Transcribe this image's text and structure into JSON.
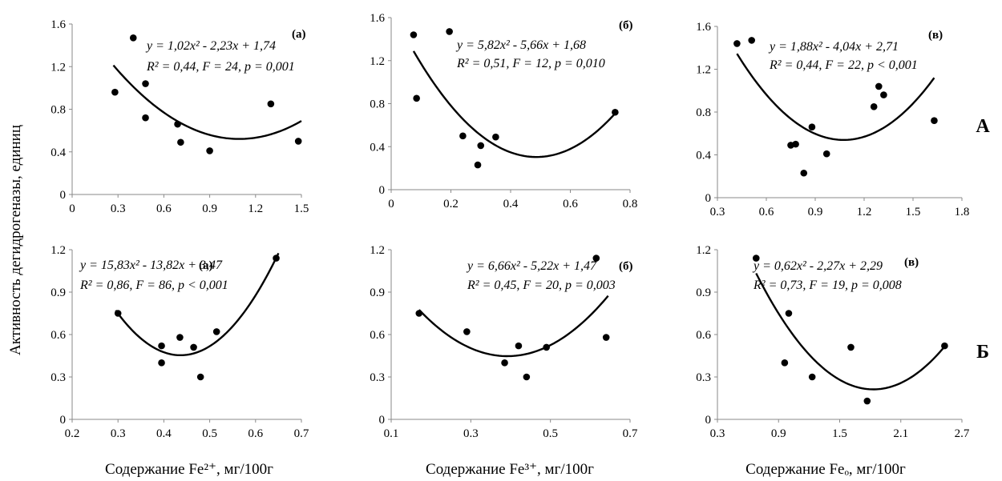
{
  "figure": {
    "ylabel": "Активность дегидрогеназы, единиц",
    "xlabels": [
      "Содержание Fe²⁺, мг/100г",
      "Содержание Fe³⁺, мг/100г",
      "Содержание Feₒ, мг/100г"
    ],
    "row_labels": [
      "А",
      "Б"
    ]
  },
  "chart_data": [
    {
      "type": "scatter",
      "row": "А",
      "tag": "(а)",
      "xlim": [
        0,
        1.5
      ],
      "xticks": [
        0,
        0.3,
        0.6,
        0.9,
        1.2,
        1.5
      ],
      "ylim": [
        0,
        1.6
      ],
      "yticks": [
        0,
        0.4,
        0.8,
        1.2,
        1.6
      ],
      "points": [
        [
          0.28,
          0.96
        ],
        [
          0.4,
          1.47
        ],
        [
          0.48,
          1.04
        ],
        [
          0.48,
          0.72
        ],
        [
          0.69,
          0.66
        ],
        [
          0.71,
          0.49
        ],
        [
          0.9,
          0.41
        ],
        [
          1.3,
          0.85
        ],
        [
          1.48,
          0.5
        ]
      ],
      "fit": {
        "type": "quadratic",
        "a": 1.02,
        "b": -2.23,
        "c": 1.74,
        "range": [
          0.27,
          1.5
        ]
      },
      "equation": [
        "y = 1,02x² - 2,23x + 1,74",
        "R² = 0,44, F = 24, p = 0,001"
      ]
    },
    {
      "type": "scatter",
      "row": "А",
      "tag": "(б)",
      "xlim": [
        0,
        0.8
      ],
      "xticks": [
        0,
        0.2,
        0.4,
        0.6,
        0.8
      ],
      "ylim": [
        0,
        1.6
      ],
      "yticks": [
        0,
        0.4,
        0.8,
        1.2,
        1.6
      ],
      "points": [
        [
          0.075,
          1.44
        ],
        [
          0.085,
          0.85
        ],
        [
          0.195,
          1.47
        ],
        [
          0.24,
          0.5
        ],
        [
          0.29,
          0.23
        ],
        [
          0.3,
          0.41
        ],
        [
          0.35,
          0.49
        ],
        [
          0.75,
          0.72
        ]
      ],
      "fit": {
        "type": "quadratic",
        "a": 5.82,
        "b": -5.66,
        "c": 1.68,
        "range": [
          0.075,
          0.75
        ]
      },
      "equation": [
        "y = 5,82x² - 5,66x + 1,68",
        "R² = 0,51, F = 12, p = 0,010"
      ]
    },
    {
      "type": "scatter",
      "row": "А",
      "tag": "(в)",
      "xlim": [
        0.3,
        1.8
      ],
      "xticks": [
        0.3,
        0.6,
        0.9,
        1.2,
        1.5,
        1.8
      ],
      "ylim": [
        0,
        1.6
      ],
      "yticks": [
        0,
        0.4,
        0.8,
        1.2,
        1.6
      ],
      "points": [
        [
          0.42,
          1.44
        ],
        [
          0.51,
          1.47
        ],
        [
          0.75,
          0.49
        ],
        [
          0.78,
          0.5
        ],
        [
          0.83,
          0.23
        ],
        [
          0.88,
          0.66
        ],
        [
          0.97,
          0.41
        ],
        [
          1.26,
          0.85
        ],
        [
          1.29,
          1.04
        ],
        [
          1.32,
          0.96
        ],
        [
          1.63,
          0.72
        ]
      ],
      "fit": {
        "type": "quadratic",
        "a": 1.88,
        "b": -4.04,
        "c": 2.71,
        "range": [
          0.42,
          1.63
        ]
      },
      "equation": [
        "y = 1,88x² - 4,04x + 2,71",
        "R² = 0,44, F = 22, p < 0,001"
      ]
    },
    {
      "type": "scatter",
      "row": "Б",
      "tag": "(а)",
      "xlim": [
        0.2,
        0.7
      ],
      "xticks": [
        0.2,
        0.3,
        0.4,
        0.5,
        0.6,
        0.7
      ],
      "ylim": [
        0,
        1.2
      ],
      "yticks": [
        0,
        0.3,
        0.6,
        0.9,
        1.2
      ],
      "points": [
        [
          0.3,
          0.75
        ],
        [
          0.395,
          0.52
        ],
        [
          0.395,
          0.4
        ],
        [
          0.435,
          0.58
        ],
        [
          0.465,
          0.51
        ],
        [
          0.48,
          0.3
        ],
        [
          0.515,
          0.62
        ],
        [
          0.645,
          1.14
        ]
      ],
      "fit": {
        "type": "quadratic",
        "a": 15.83,
        "b": -13.82,
        "c": 3.47,
        "range": [
          0.295,
          0.65
        ]
      },
      "equation": [
        "y = 15,83x² - 13,82x + 3,47",
        "R² = 0,86, F = 86, p < 0,001"
      ]
    },
    {
      "type": "scatter",
      "row": "Б",
      "tag": "(б)",
      "xlim": [
        0.1,
        0.7
      ],
      "xticks": [
        0.1,
        0.3,
        0.5,
        0.7
      ],
      "ylim": [
        0,
        1.2
      ],
      "yticks": [
        0,
        0.3,
        0.6,
        0.9,
        1.2
      ],
      "points": [
        [
          0.17,
          0.75
        ],
        [
          0.29,
          0.62
        ],
        [
          0.385,
          0.4
        ],
        [
          0.42,
          0.52
        ],
        [
          0.44,
          0.3
        ],
        [
          0.49,
          0.51
        ],
        [
          0.615,
          1.14
        ],
        [
          0.64,
          0.58
        ]
      ],
      "fit": {
        "type": "quadratic",
        "a": 6.66,
        "b": -5.22,
        "c": 1.47,
        "range": [
          0.17,
          0.645
        ]
      },
      "equation": [
        "y = 6,66x² - 5,22x + 1,47",
        "R² = 0,45, F = 20, p = 0,003"
      ]
    },
    {
      "type": "scatter",
      "row": "Б",
      "tag": "(в)",
      "xlim": [
        0.3,
        2.7
      ],
      "xticks": [
        0.3,
        0.9,
        1.5,
        2.1,
        2.7
      ],
      "ylim": [
        0,
        1.2
      ],
      "yticks": [
        0,
        0.3,
        0.6,
        0.9,
        1.2
      ],
      "points": [
        [
          0.68,
          1.14
        ],
        [
          0.96,
          0.4
        ],
        [
          1.0,
          0.75
        ],
        [
          1.23,
          0.3
        ],
        [
          1.61,
          0.51
        ],
        [
          1.77,
          0.13
        ],
        [
          2.53,
          0.52
        ]
      ],
      "fit": {
        "type": "quadratic",
        "a": 0.62,
        "b": -2.27,
        "c": 2.29,
        "range": [
          0.68,
          2.53
        ]
      },
      "equation": [
        "y = 0,62x² - 2,27x + 2,29",
        "R² = 0,73, F = 19, p = 0,008"
      ]
    }
  ]
}
